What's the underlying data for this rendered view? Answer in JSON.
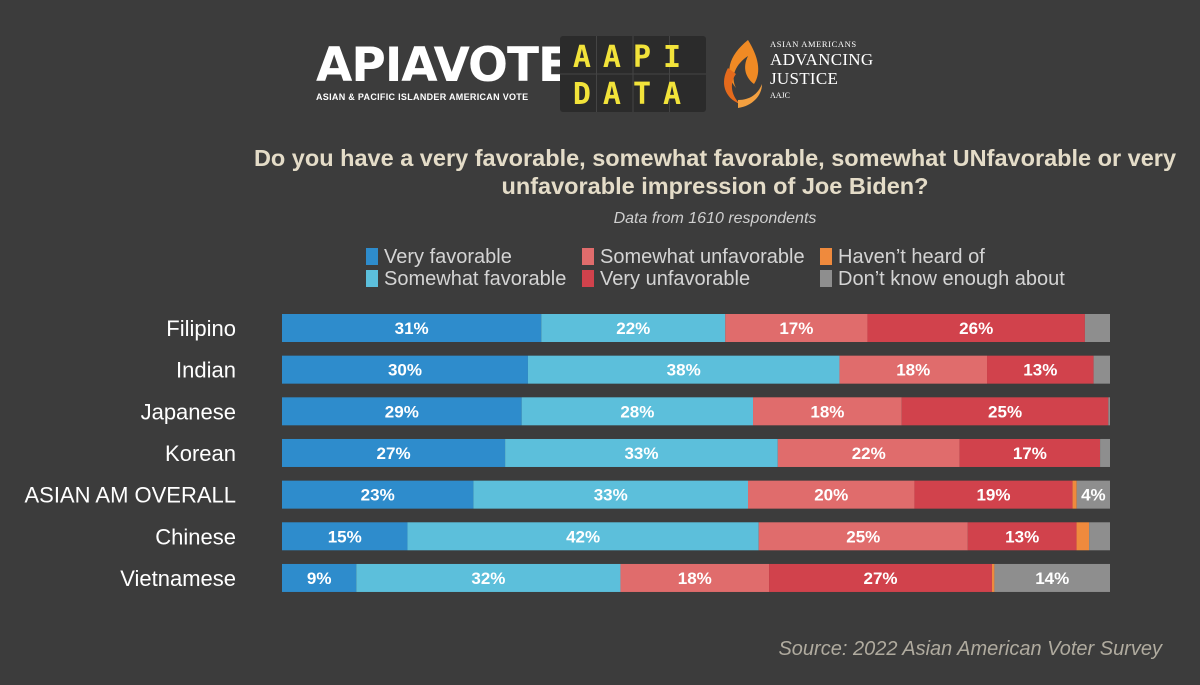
{
  "logos": {
    "apiavote": {
      "name": "APIAVOTE",
      "tagline": "ASIAN & PACIFIC ISLANDER AMERICAN VOTE"
    },
    "aapidata": {
      "line1": "AAPI",
      "line2": "DATA"
    },
    "aajc": {
      "line1": "ASIAN AMERICANS",
      "line2": "ADVANCING",
      "line3": "JUSTICE",
      "line4": "AAJC"
    }
  },
  "source": "Source: 2022 Asian American Voter Survey",
  "chart_data": {
    "type": "bar",
    "orientation": "horizontal",
    "stacked": true,
    "title": "Do you have a very favorable, somewhat favorable, somewhat UNfavorable or very unfavorable impression of Joe Biden?",
    "subtitle": "Data from 1610 respondents",
    "legend_position": "top",
    "xlim": [
      0,
      100
    ],
    "grid": false,
    "categories": [
      "Filipino",
      "Indian",
      "Japanese",
      "Korean",
      "ASIAN AM OVERALL",
      "Chinese",
      "Vietnamese"
    ],
    "series": [
      {
        "name": "Very favorable",
        "color": "#2e8ccc",
        "values": [
          31,
          30,
          29,
          27,
          23,
          15,
          9
        ]
      },
      {
        "name": "Somewhat favorable",
        "color": "#5cbfdb",
        "values": [
          22,
          38,
          28,
          33,
          33,
          42,
          32
        ]
      },
      {
        "name": "Somewhat unfavorable",
        "color": "#e06c6c",
        "values": [
          17,
          18,
          18,
          22,
          20,
          25,
          18
        ]
      },
      {
        "name": "Very unfavorable",
        "color": "#d1424c",
        "values": [
          26,
          13,
          25,
          17,
          19,
          13,
          27
        ]
      },
      {
        "name": "Haven’t heard of",
        "color": "#ef8a3d",
        "values": [
          0,
          0,
          0,
          0,
          0.5,
          1.5,
          0.3
        ]
      },
      {
        "name": "Don’t know enough about",
        "color": "#8e8e8e",
        "values": [
          3,
          2,
          0.2,
          1.2,
          4,
          2.5,
          14
        ]
      }
    ],
    "labels": [
      [
        "31%",
        "22%",
        "17%",
        "26%",
        "",
        ""
      ],
      [
        "30%",
        "38%",
        "18%",
        "13%",
        "",
        ""
      ],
      [
        "29%",
        "28%",
        "18%",
        "25%",
        "",
        ""
      ],
      [
        "27%",
        "33%",
        "22%",
        "17%",
        "",
        ""
      ],
      [
        "23%",
        "33%",
        "20%",
        "19%",
        "",
        "4%"
      ],
      [
        "15%",
        "42%",
        "25%",
        "13%",
        "",
        ""
      ],
      [
        "9%",
        "32%",
        "18%",
        "27%",
        "",
        "14%"
      ]
    ]
  }
}
